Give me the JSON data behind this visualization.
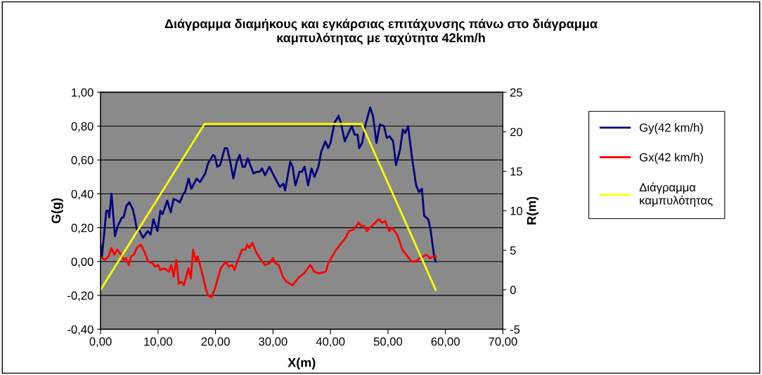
{
  "chart_data": {
    "type": "line",
    "title": "Διάγραμμα διαμήκους και εγκάρσιας επιτάχυνσης πάνω στο διάγραμμα\nκαμπυλότητας με ταχύτητα 42km/h",
    "xlabel": "X(m)",
    "ylabel": "G(g)",
    "y2label": "R(m)",
    "xlim": [
      0,
      70
    ],
    "xticks": [
      {
        "value": 0,
        "label": "0,00"
      },
      {
        "value": 10,
        "label": "10,00"
      },
      {
        "value": 20,
        "label": "20,00"
      },
      {
        "value": 30,
        "label": "30,00"
      },
      {
        "value": 40,
        "label": "40,00"
      },
      {
        "value": 50,
        "label": "50,00"
      },
      {
        "value": 60,
        "label": "60,00"
      },
      {
        "value": 70,
        "label": "70,00"
      }
    ],
    "ylim": [
      -0.4,
      1.0
    ],
    "yticks": [
      {
        "value": -0.4,
        "label": "-0,40"
      },
      {
        "value": -0.2,
        "label": "-0,20"
      },
      {
        "value": 0,
        "label": "0,00"
      },
      {
        "value": 0.2,
        "label": "0,20"
      },
      {
        "value": 0.4,
        "label": "0,40"
      },
      {
        "value": 0.6,
        "label": "0,60"
      },
      {
        "value": 0.8,
        "label": "0,80"
      },
      {
        "value": 1.0,
        "label": "1,00"
      }
    ],
    "y2lim": [
      -5,
      25
    ],
    "y2ticks": [
      -5,
      0,
      5,
      10,
      15,
      20,
      25
    ],
    "grid": "y",
    "legend": "right",
    "marker": "none",
    "line_style": "solid",
    "series": [
      {
        "name": "Gy(42 km/h)",
        "color": "#000080",
        "x": [
          0,
          0.24,
          1.0,
          1.4,
          1.5,
          1.9,
          2.5,
          3.0,
          3.7,
          4.0,
          4.5,
          5.0,
          5.6,
          6.0,
          6.3,
          6.8,
          7.4,
          8.2,
          8.7,
          9.2,
          9.9,
          10.4,
          10.8,
          11.6,
          12.2,
          12.7,
          13.3,
          13.8,
          14.4,
          14.7,
          15.3,
          15.8,
          16.7,
          17.3,
          18.2,
          18.7,
          19.6,
          19.9,
          20.3,
          20.8,
          21.6,
          22.0,
          22.5,
          23.1,
          23.7,
          24.2,
          24.7,
          25.1,
          25.6,
          26.6,
          27.2,
          27.7,
          28.1,
          28.6,
          29.4,
          30.1,
          31.2,
          31.8,
          32.1,
          33.0,
          33.4,
          33.9,
          34.6,
          35.0,
          35.5,
          36.1,
          36.7,
          37.2,
          37.9,
          38.4,
          39.1,
          39.6,
          40.0,
          40.7,
          41.4,
          41.8,
          42.5,
          43.0,
          43.7,
          44.2,
          44.7,
          45.0,
          45.5,
          46.1,
          46.9,
          47.4,
          48.0,
          48.6,
          49.3,
          49.8,
          50.3,
          50.9,
          51.4,
          52.1,
          52.6,
          53.0,
          53.5,
          54.2,
          54.9,
          55.4,
          55.9,
          56.3,
          57.0,
          57.4,
          58.0,
          58.3
        ],
        "values": [
          0.1,
          0.03,
          0.3,
          0.3,
          0.26,
          0.4,
          0.15,
          0.21,
          0.26,
          0.26,
          0.33,
          0.35,
          0.31,
          0.25,
          0.19,
          0.18,
          0.14,
          0.18,
          0.16,
          0.25,
          0.18,
          0.3,
          0.28,
          0.36,
          0.29,
          0.37,
          0.36,
          0.35,
          0.4,
          0.41,
          0.49,
          0.43,
          0.49,
          0.47,
          0.52,
          0.58,
          0.63,
          0.62,
          0.56,
          0.57,
          0.67,
          0.67,
          0.6,
          0.49,
          0.59,
          0.63,
          0.56,
          0.56,
          0.61,
          0.52,
          0.53,
          0.53,
          0.55,
          0.51,
          0.56,
          0.51,
          0.44,
          0.46,
          0.42,
          0.59,
          0.56,
          0.45,
          0.53,
          0.53,
          0.56,
          0.45,
          0.55,
          0.5,
          0.56,
          0.65,
          0.71,
          0.67,
          0.7,
          0.82,
          0.86,
          0.82,
          0.71,
          0.75,
          0.8,
          0.75,
          0.75,
          0.67,
          0.7,
          0.81,
          0.91,
          0.86,
          0.7,
          0.81,
          0.8,
          0.73,
          0.74,
          0.71,
          0.57,
          0.66,
          0.78,
          0.76,
          0.8,
          0.61,
          0.45,
          0.41,
          0.43,
          0.27,
          0.25,
          0.19,
          0.04,
          0.0
        ]
      },
      {
        "name": "Gx(42 km/h)",
        "color": "#ff0000",
        "x": [
          0,
          0.7,
          1.4,
          1.9,
          2.4,
          2.9,
          3.6,
          4.0,
          4.4,
          4.9,
          5.3,
          5.8,
          6.3,
          7.0,
          7.6,
          8.3,
          9.0,
          9.5,
          10.0,
          10.4,
          11.1,
          11.9,
          12.3,
          12.7,
          13.2,
          13.6,
          14.1,
          14.5,
          15.3,
          15.7,
          16.1,
          16.6,
          16.9,
          17.6,
          18.3,
          18.7,
          19.3,
          19.9,
          20.9,
          21.8,
          22.3,
          22.9,
          23.3,
          23.7,
          24.6,
          25.2,
          25.5,
          25.9,
          26.4,
          27.0,
          27.7,
          28.6,
          29.4,
          30.0,
          30.4,
          31.0,
          31.7,
          32.4,
          33.4,
          34.6,
          35.4,
          36.5,
          37.2,
          38.0,
          39.2,
          39.6,
          41.0,
          42.6,
          43.2,
          44.1,
          44.9,
          45.3,
          45.9,
          46.3,
          46.9,
          48.4,
          49.0,
          49.5,
          50.2,
          50.7,
          51.6,
          52.5,
          54.1,
          54.9,
          55.5,
          56.7,
          57.3,
          57.9,
          58.3
        ],
        "values": [
          0.03,
          0.01,
          0.03,
          0.08,
          0.04,
          0.07,
          0.04,
          0.01,
          0.02,
          -0.02,
          0.03,
          0.04,
          0.08,
          0.1,
          0.06,
          0.0,
          -0.01,
          -0.03,
          -0.02,
          -0.05,
          -0.04,
          -0.06,
          -0.02,
          -0.09,
          0.01,
          -0.13,
          -0.12,
          -0.14,
          -0.04,
          -0.1,
          0.07,
          0.0,
          0.03,
          -0.06,
          -0.16,
          -0.2,
          -0.21,
          -0.16,
          -0.04,
          0.0,
          -0.03,
          -0.02,
          -0.05,
          -0.01,
          0.07,
          0.07,
          0.1,
          0.08,
          0.11,
          0.06,
          0.02,
          -0.02,
          -0.01,
          0.02,
          -0.01,
          -0.02,
          -0.09,
          -0.12,
          -0.14,
          -0.09,
          -0.07,
          -0.02,
          -0.06,
          -0.07,
          -0.06,
          -0.01,
          0.07,
          0.14,
          0.18,
          0.19,
          0.23,
          0.21,
          0.21,
          0.18,
          0.2,
          0.25,
          0.23,
          0.24,
          0.18,
          0.2,
          0.16,
          0.07,
          0.0,
          0.0,
          0.02,
          0.04,
          0.02,
          0.03,
          0.03
        ]
      },
      {
        "name": "Διάγραμμα καμπυλότητας",
        "color": "#ffff00",
        "axis": "y2",
        "x": [
          0,
          18.1,
          45.4,
          58.3
        ],
        "values": [
          0,
          21,
          21,
          0
        ]
      }
    ]
  }
}
